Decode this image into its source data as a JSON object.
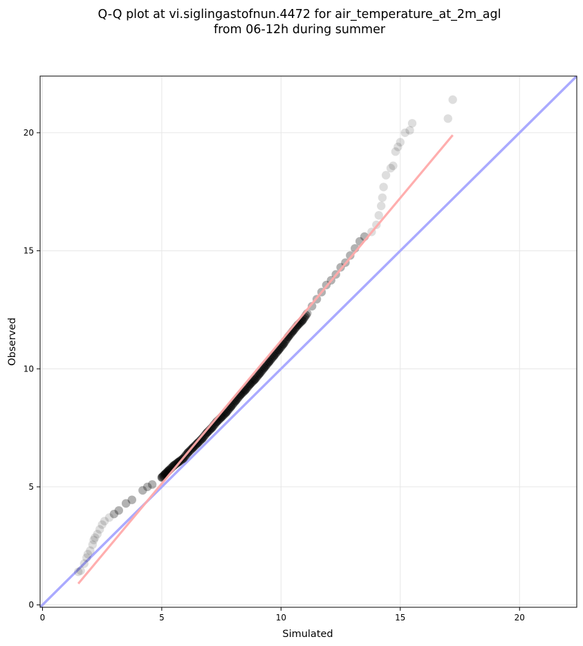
{
  "chart_data": {
    "type": "scatter",
    "title_line1": "Q-Q plot at vi.siglingastofnun.4472 for air_temperature_at_2m_agl",
    "title_line2": "from 06-12h during summer",
    "xlabel": "Simulated",
    "ylabel": "Observed",
    "xlim": [
      -0.1,
      22.4
    ],
    "ylim": [
      -0.1,
      22.4
    ],
    "xticks": [
      0,
      5,
      10,
      15,
      20
    ],
    "yticks": [
      0,
      5,
      10,
      15,
      20
    ],
    "xtick_labels": [
      "0",
      "5",
      "10",
      "15",
      "20"
    ],
    "ytick_labels": [
      "0",
      "5",
      "10",
      "15",
      "20"
    ],
    "grid": true,
    "point_color": "#000000",
    "identity_line_color": "#aaaaff",
    "fit_line_color": "#ffaaaa",
    "fit_line": {
      "x": [
        1.5,
        17.2
      ],
      "y": [
        0.9,
        19.9
      ]
    },
    "identity_line": {
      "x": [
        -0.1,
        22.4
      ],
      "y": [
        -0.1,
        22.4
      ]
    },
    "points": {
      "x": [
        1.5,
        1.6,
        1.75,
        1.85,
        1.9,
        2.0,
        2.1,
        2.15,
        2.2,
        2.3,
        2.4,
        2.5,
        2.6,
        2.8,
        3.0,
        3.2,
        3.5,
        3.75,
        4.2,
        4.4,
        4.6,
        5.0,
        5.15,
        5.3,
        5.5,
        5.7,
        5.9,
        6.1,
        6.3,
        6.5,
        6.7,
        6.9,
        7.1,
        7.3,
        7.5,
        7.7,
        7.9,
        8.1,
        8.3,
        8.5,
        8.7,
        8.9,
        9.1,
        9.3,
        9.5,
        9.7,
        9.9,
        10.1,
        10.3,
        10.5,
        10.7,
        10.9,
        11.1,
        11.3,
        11.5,
        11.7,
        11.9,
        12.1,
        12.3,
        12.5,
        12.7,
        12.9,
        13.1,
        13.3,
        13.5,
        13.8,
        14.0,
        14.1,
        14.2,
        14.25,
        14.3,
        14.4,
        14.6,
        14.7,
        14.8,
        14.9,
        15.0,
        15.2,
        15.4,
        15.5,
        17.0,
        17.2
      ],
      "y": [
        1.4,
        1.45,
        1.75,
        2.0,
        2.15,
        2.3,
        2.55,
        2.75,
        2.85,
        3.0,
        3.2,
        3.4,
        3.55,
        3.7,
        3.85,
        4.0,
        4.3,
        4.45,
        4.85,
        5.0,
        5.1,
        5.4,
        5.55,
        5.7,
        5.9,
        6.05,
        6.2,
        6.45,
        6.65,
        6.85,
        7.05,
        7.3,
        7.5,
        7.75,
        7.95,
        8.15,
        8.4,
        8.65,
        8.9,
        9.1,
        9.35,
        9.55,
        9.8,
        10.05,
        10.3,
        10.55,
        10.8,
        11.05,
        11.35,
        11.6,
        11.85,
        12.05,
        12.35,
        12.65,
        12.95,
        13.25,
        13.55,
        13.75,
        14.0,
        14.3,
        14.5,
        14.8,
        15.1,
        15.4,
        15.6,
        15.8,
        16.1,
        16.5,
        16.9,
        17.25,
        17.7,
        18.2,
        18.5,
        18.6,
        19.2,
        19.4,
        19.6,
        20.0,
        20.1,
        20.4,
        20.6,
        21.4
      ]
    }
  }
}
